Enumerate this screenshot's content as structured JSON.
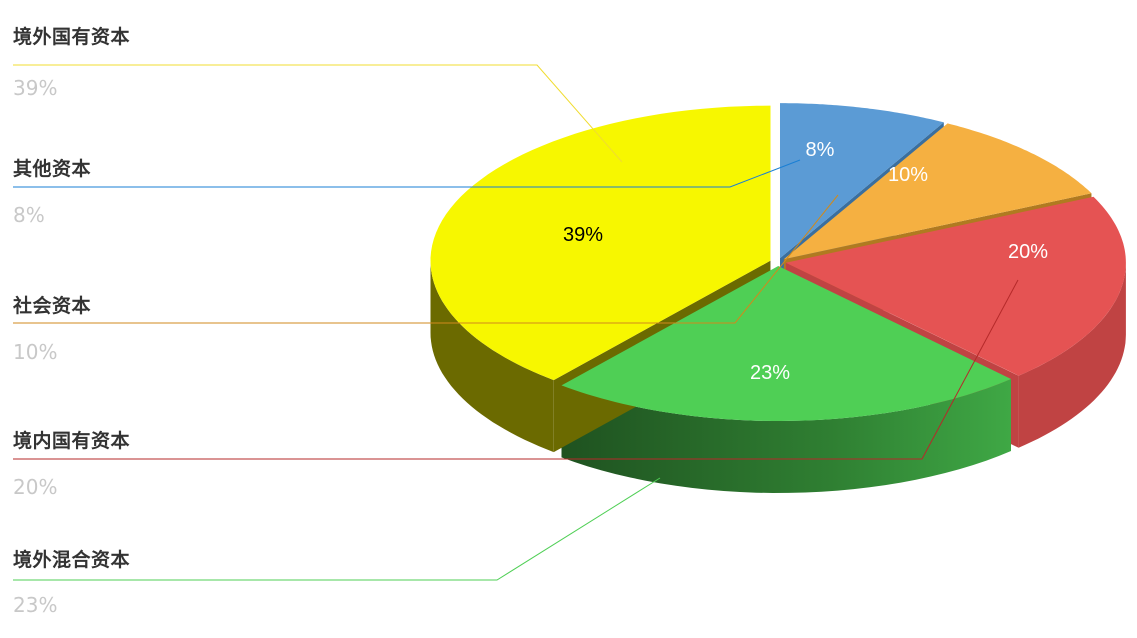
{
  "chart_data": {
    "type": "pie",
    "style": "3d",
    "start": "top",
    "direction": "clockwise",
    "slices": [
      {
        "name": "其他资本",
        "value": 8,
        "label": "8%",
        "color": "#5b9bd5",
        "side_color": "#3a6f9f",
        "label_color": "#ffffff",
        "leader_color": "#1a7fd4"
      },
      {
        "name": "社会资本",
        "value": 10,
        "label": "10%",
        "color": "#f5b041",
        "side_color": "#b07a20",
        "label_color": "#ffffff",
        "leader_color": "#d08a1c"
      },
      {
        "name": "境内国有资本",
        "value": 20,
        "label": "20%",
        "color": "#e55353",
        "side_color": "#c04343",
        "label_color": "#ffffff",
        "leader_color": "#b52a2a"
      },
      {
        "name": "境外混合资本",
        "value": 23,
        "label": "23%",
        "color": "#4fcf55",
        "side_color": "#2c7a30",
        "label_color": "#ffffff",
        "leader_color": "#4fcf55"
      },
      {
        "name": "境外国有资本",
        "value": 39,
        "label": "39%",
        "color": "#f7f700",
        "side_color": "#6b6a00",
        "label_color": "#000000",
        "leader_color": "#f0dc30"
      }
    ],
    "legend": [
      {
        "name": "境外国有资本",
        "percent": "39%"
      },
      {
        "name": "其他资本",
        "percent": "8%"
      },
      {
        "name": "社会资本",
        "percent": "10%"
      },
      {
        "name": "境内国有资本",
        "percent": "20%"
      },
      {
        "name": "境外混合资本",
        "percent": "23%"
      }
    ],
    "legend_placement": "left"
  }
}
